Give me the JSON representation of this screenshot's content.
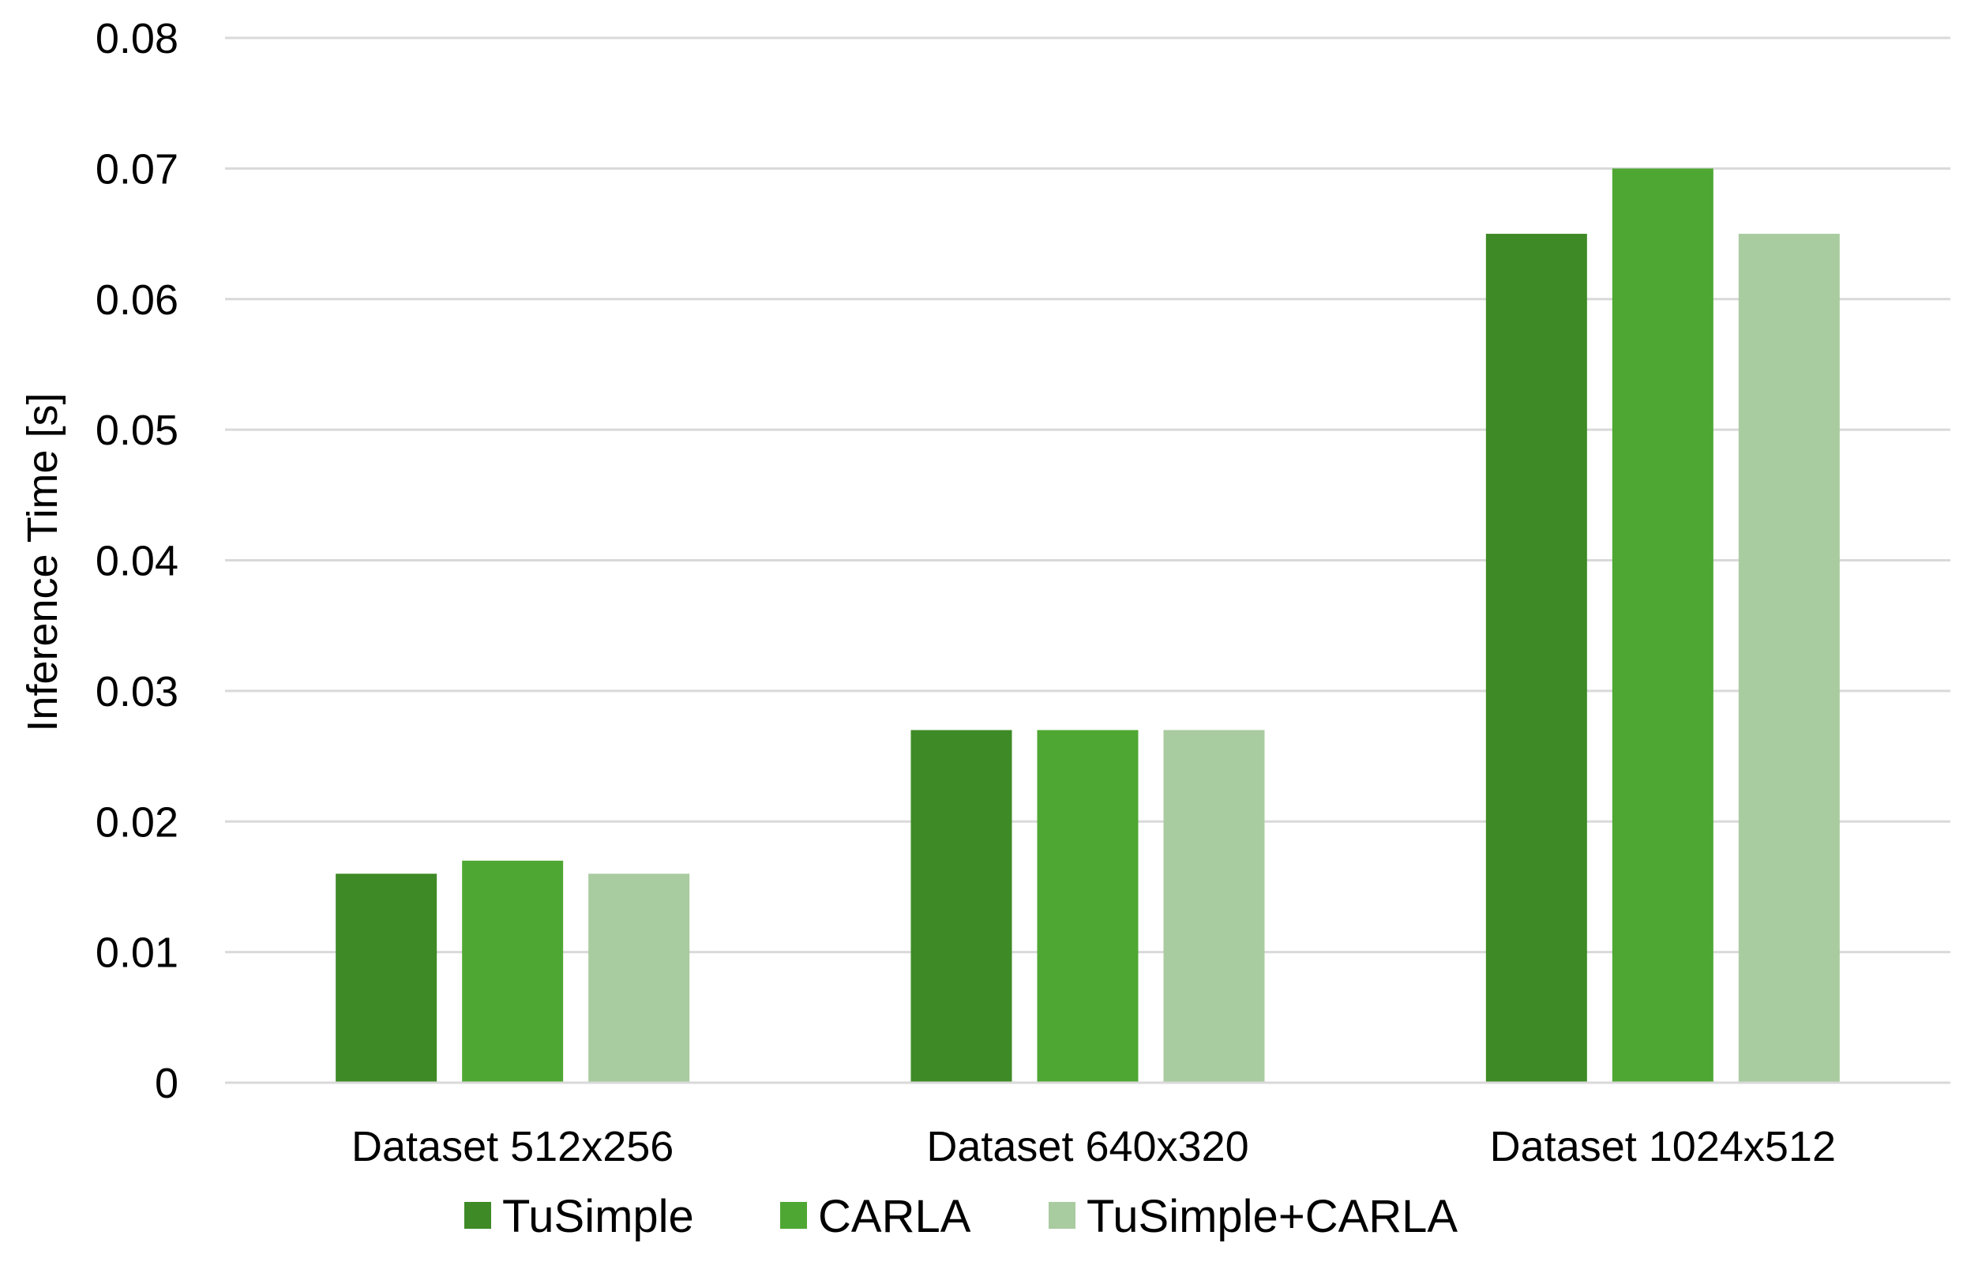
{
  "chart_data": {
    "type": "bar",
    "title": "",
    "xlabel": "",
    "ylabel": "Inference Time [s]",
    "ylim": [
      0,
      0.08
    ],
    "yticks": [
      "0",
      "0.01",
      "0.02",
      "0.03",
      "0.04",
      "0.05",
      "0.06",
      "0.07",
      "0.08"
    ],
    "grid": true,
    "legend_position": "bottom",
    "categories": [
      "Dataset 512x256",
      "Dataset 640x320",
      "Dataset 1024x512"
    ],
    "series": [
      {
        "name": "TuSimple",
        "color": "#3e8a26",
        "values": [
          0.016,
          0.027,
          0.065
        ]
      },
      {
        "name": "CARLA",
        "color": "#4fa733",
        "values": [
          0.017,
          0.027,
          0.07
        ]
      },
      {
        "name": "TuSimple+CARLA",
        "color": "#a9cba0",
        "values": [
          0.016,
          0.027,
          0.065
        ]
      }
    ]
  }
}
